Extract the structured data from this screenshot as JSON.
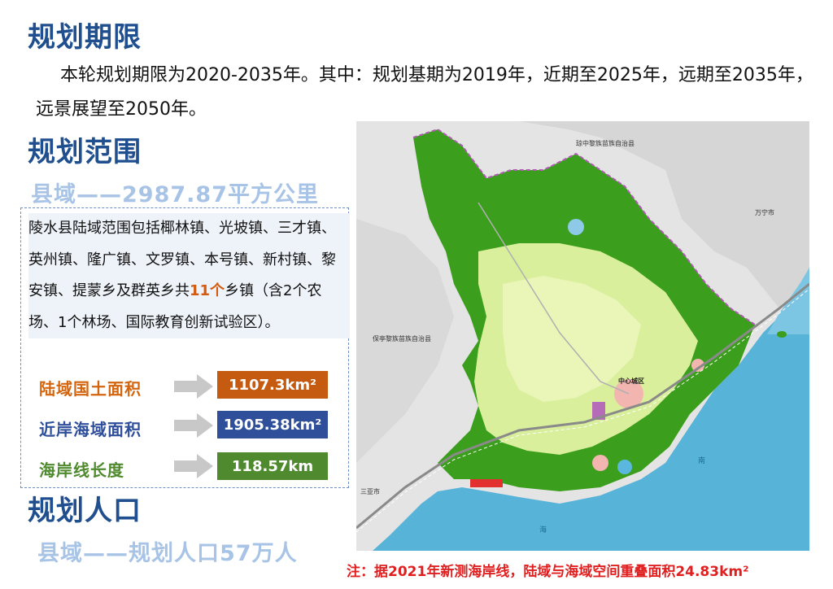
{
  "sections": {
    "period_title": "规划期限",
    "period_text": "本轮规划期限为2020-2035年。其中：规划基期为2019年，近期至2025年，远期至2035年，远景展望至2050年。",
    "scope_title": "规划范围",
    "scope_subtitle": "县域——2987.87平方公里",
    "scope_desc_part1": "陵水县陆域范围包括椰林镇、光坡镇、三才镇、英州镇、隆广镇、文罗镇、本号镇、新村镇、黎安镇、提蒙乡及群英乡共",
    "scope_desc_highlight": "11个",
    "scope_desc_part2": "乡镇（含2个农场、1个林场、国际教育创新试验区）。",
    "population_title": "规划人口",
    "population_subtitle": "县域——规划人口57万人"
  },
  "stats": [
    {
      "label": "陆域国土面积",
      "value": "1107.3km²",
      "label_color": "#d4650f",
      "box_color": "#c55a11"
    },
    {
      "label": "近岸海域面积",
      "value": "1905.38km²",
      "label_color": "#2f4f9a",
      "box_color": "#2f4f9a"
    },
    {
      "label": "海岸线长度",
      "value": "118.57km",
      "label_color": "#4f8a2e",
      "box_color": "#4f8a2e"
    }
  ],
  "map": {
    "labels": {
      "north": "琼中黎族苗族自治县",
      "east": "万宁市",
      "west": "保亭黎族苗族自治县",
      "southwest": "三亚市",
      "center": "中心城区",
      "sea_1": "南",
      "sea_2": "海"
    }
  },
  "note": "注：据2021年新测海岸线，陆域与海域空间重叠面积24.83km²"
}
